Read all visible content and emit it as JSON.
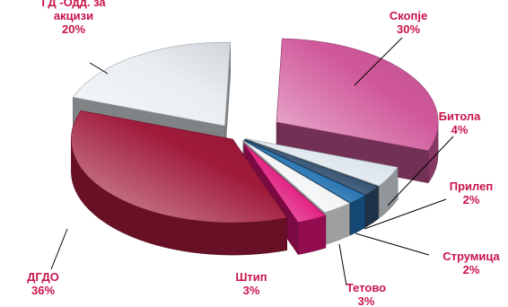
{
  "chart_data": {
    "type": "pie",
    "slices": [
      {
        "label": "Скопје",
        "value": 30,
        "value_label": "30%",
        "color": "#d0589a"
      },
      {
        "label": "Битола",
        "value": 4,
        "value_label": "4%",
        "color": "#dfe7ee"
      },
      {
        "label": "Прилеп",
        "value": 2,
        "value_label": "2%",
        "color": "#2f4e6e"
      },
      {
        "label": "Струмица",
        "value": 2,
        "value_label": "2%",
        "color": "#1f6fb0"
      },
      {
        "label": "Тетово",
        "value": 3,
        "value_label": "3%",
        "color": "#f2f4f6"
      },
      {
        "label": "Штип",
        "value": 3,
        "value_label": "3%",
        "color": "#e0137a"
      },
      {
        "label": "ДГДО",
        "value": 36,
        "value_label": "36%",
        "color": "#a01a3a"
      },
      {
        "label": "ГД -Одд. за акцизи",
        "value": 20,
        "value_label": "20%",
        "color": "#e9eef2"
      }
    ],
    "label_color": "#c8144a"
  }
}
